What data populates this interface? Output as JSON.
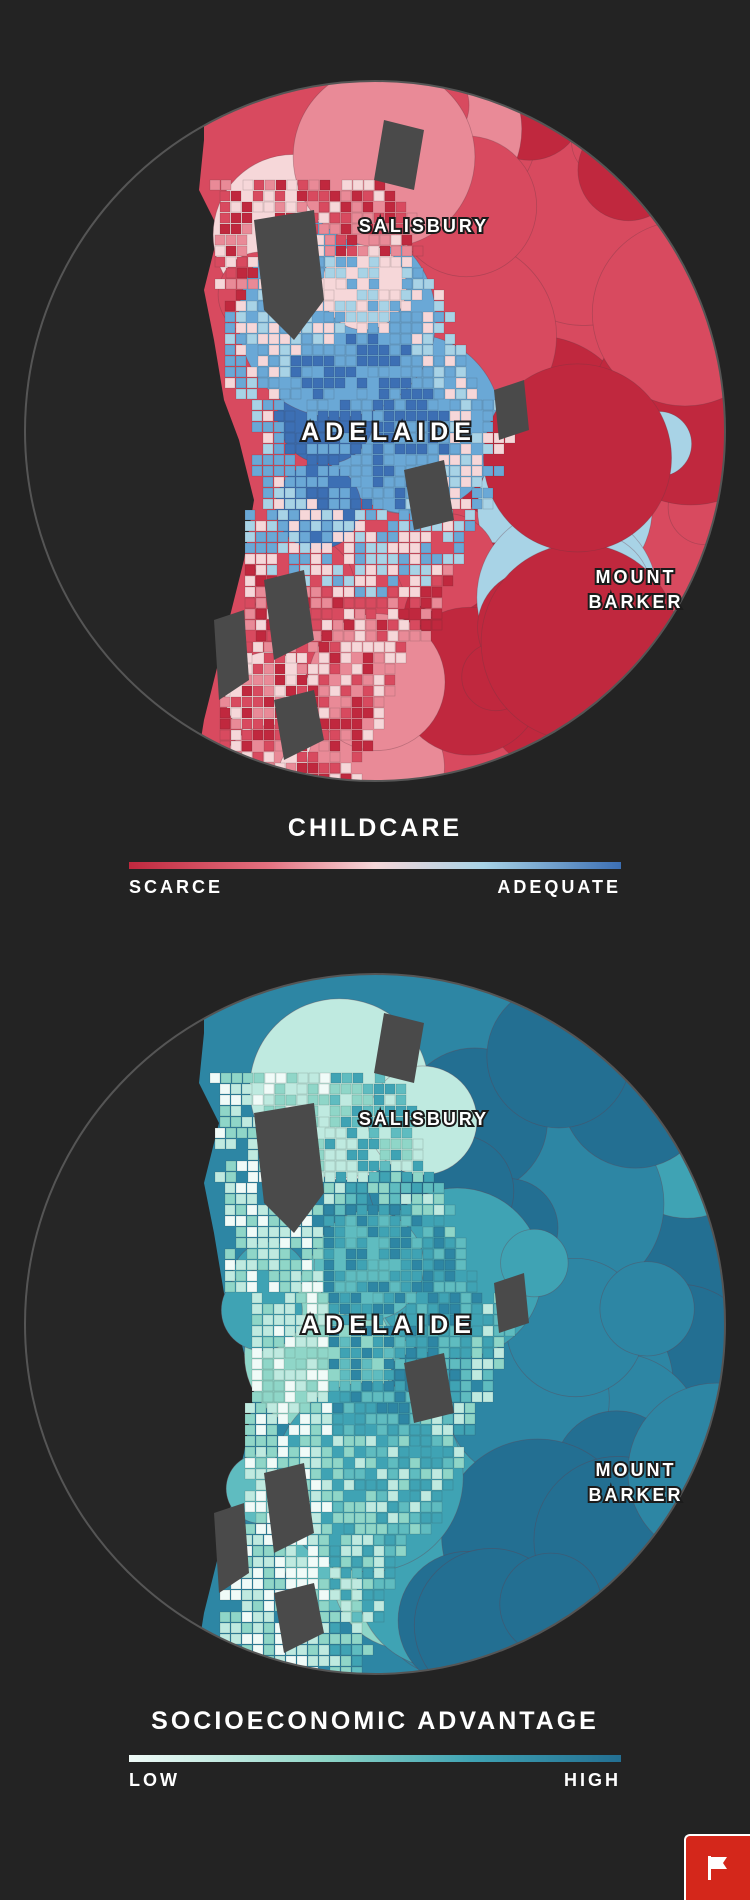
{
  "maps": [
    {
      "id": "childcare",
      "labels": {
        "north": "SALISBURY",
        "center": "ADELAIDE",
        "east_line1": "MOUNT",
        "east_line2": "BARKER"
      },
      "legend": {
        "title": "CHILDCARE",
        "low": "SCARCE",
        "high": "ADEQUATE"
      },
      "colors": [
        "#c0283e",
        "#d84a5f",
        "#e98a97",
        "#f6d7d9",
        "#a8d3e6",
        "#6aa8d6",
        "#3c6fb4"
      ]
    },
    {
      "id": "socioeconomic",
      "labels": {
        "north": "SALISBURY",
        "center": "ADELAIDE",
        "east_line1": "MOUNT",
        "east_line2": "BARKER"
      },
      "legend": {
        "title": "SOCIOECONOMIC ADVANTAGE",
        "low": "LOW",
        "high": "HIGH"
      },
      "colors": [
        "#f0fbf8",
        "#bfeae0",
        "#8fd6c8",
        "#5fbcc0",
        "#3fa3b4",
        "#2d86a4",
        "#236f92"
      ]
    }
  ],
  "flag_icon": "flag-icon",
  "accent": "#d4271b"
}
